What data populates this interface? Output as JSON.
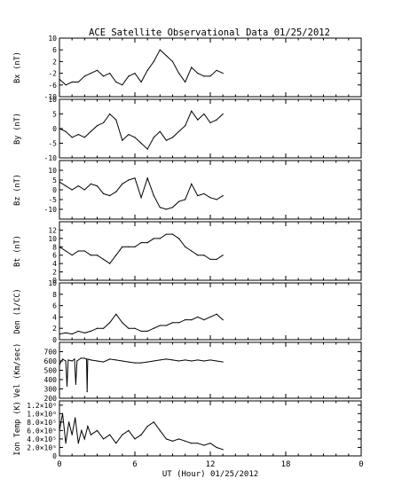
{
  "chart_data": {
    "type": "line",
    "title": "ACE Satellite Observational Data  01/25/2012",
    "xlabel": "UT (Hour)  01/25/2012",
    "xlim": [
      0,
      24
    ],
    "xticks": [
      "0",
      "6",
      "12",
      "18",
      "0"
    ],
    "grid": false,
    "panels": [
      {
        "ylabel": "Bx (nT)",
        "ylim": [
          -10,
          10
        ],
        "yticks": [
          "10",
          "6",
          "2",
          "-2",
          "-6",
          "-10"
        ],
        "x": [
          0,
          0.5,
          1,
          1.5,
          2,
          2.5,
          3,
          3.5,
          4,
          4.5,
          5,
          5.5,
          6,
          6.5,
          7,
          7.5,
          8,
          8.5,
          9,
          9.5,
          10,
          10.5,
          11,
          11.5,
          12,
          12.5,
          13
        ],
        "values": [
          -4,
          -6,
          -5,
          -5,
          -3,
          -2,
          -1,
          -3,
          -2,
          -5,
          -6,
          -3,
          -2,
          -5,
          -1,
          2,
          6,
          4,
          2,
          -2,
          -5,
          0,
          -2,
          -3,
          -3,
          -1,
          -2
        ]
      },
      {
        "ylabel": "By (nT)",
        "ylim": [
          -10,
          10
        ],
        "yticks": [
          "10",
          "5",
          "0",
          "-5",
          "-10"
        ],
        "x": [
          0,
          0.5,
          1,
          1.5,
          2,
          2.5,
          3,
          3.5,
          4,
          4.5,
          5,
          5.5,
          6,
          6.5,
          7,
          7.5,
          8,
          8.5,
          9,
          9.5,
          10,
          10.5,
          11,
          11.5,
          12,
          12.5,
          13
        ],
        "values": [
          0,
          -1,
          -3,
          -2,
          -3,
          -1,
          1,
          2,
          5,
          3,
          -4,
          -2,
          -3,
          -5,
          -7,
          -3,
          -1,
          -4,
          -3,
          -1,
          1,
          6,
          3,
          5,
          2,
          3,
          5
        ]
      },
      {
        "ylabel": "Bz (nT)",
        "ylim": [
          -15,
          15
        ],
        "yticks": [
          "10",
          "5",
          "0",
          "-5",
          "-10"
        ],
        "x": [
          0,
          0.5,
          1,
          1.5,
          2,
          2.5,
          3,
          3.5,
          4,
          4.5,
          5,
          5.5,
          6,
          6.5,
          7,
          7.5,
          8,
          8.5,
          9,
          9.5,
          10,
          10.5,
          11,
          11.5,
          12,
          12.5,
          13
        ],
        "values": [
          4,
          2,
          0,
          2,
          0,
          3,
          2,
          -2,
          -3,
          -1,
          3,
          5,
          6,
          -4,
          6,
          -3,
          -9,
          -10,
          -9,
          -6,
          -5,
          3,
          -3,
          -2,
          -4,
          -5,
          -3
        ]
      },
      {
        "ylabel": "Bt (nT)",
        "ylim": [
          0,
          14
        ],
        "yticks": [
          "12",
          "10",
          "8",
          "6",
          "4",
          "2",
          "0"
        ],
        "x": [
          0,
          0.5,
          1,
          1.5,
          2,
          2.5,
          3,
          3.5,
          4,
          4.5,
          5,
          5.5,
          6,
          6.5,
          7,
          7.5,
          8,
          8.5,
          9,
          9.5,
          10,
          10.5,
          11,
          11.5,
          12,
          12.5,
          13
        ],
        "values": [
          8,
          7,
          6,
          7,
          7,
          6,
          6,
          5,
          4,
          6,
          8,
          8,
          8,
          9,
          9,
          10,
          10,
          11,
          11,
          10,
          8,
          7,
          6,
          6,
          5,
          5,
          6
        ]
      },
      {
        "ylabel": "Den (1/CC)",
        "ylim": [
          0,
          10
        ],
        "yticks": [
          "10",
          "8",
          "6",
          "4",
          "2",
          "0"
        ],
        "x": [
          0,
          0.5,
          1,
          1.5,
          2,
          2.5,
          3,
          3.5,
          4,
          4.5,
          5,
          5.5,
          6,
          6.5,
          7,
          7.5,
          8,
          8.5,
          9,
          9.5,
          10,
          10.5,
          11,
          11.5,
          12,
          12.5,
          13
        ],
        "values": [
          1,
          1.2,
          1,
          1.5,
          1.2,
          1.5,
          2,
          2,
          3,
          4.5,
          3,
          2,
          2,
          1.5,
          1.5,
          2,
          2.5,
          2.5,
          3,
          3,
          3.5,
          3.5,
          4,
          3.5,
          4,
          4.5,
          3.5
        ]
      },
      {
        "ylabel": "Vel (Km/sec)",
        "ylim": [
          200,
          800
        ],
        "yticks": [
          "700",
          "600",
          "500",
          "400",
          "300",
          "200"
        ],
        "x": [
          0,
          0.25,
          0.5,
          0.6,
          0.7,
          1,
          1.2,
          1.3,
          1.4,
          1.7,
          2,
          2.15,
          2.2,
          2.25,
          2.5,
          3,
          3.5,
          4,
          4.5,
          5,
          5.5,
          6,
          6.5,
          7,
          7.5,
          8,
          8.5,
          9,
          9.5,
          10,
          10.5,
          11,
          11.5,
          12,
          12.5,
          13
        ],
        "values": [
          560,
          620,
          600,
          330,
          610,
          600,
          620,
          350,
          600,
          630,
          630,
          620,
          270,
          620,
          610,
          600,
          590,
          620,
          610,
          600,
          590,
          580,
          580,
          590,
          600,
          610,
          620,
          610,
          600,
          610,
          600,
          610,
          600,
          610,
          600,
          590
        ]
      },
      {
        "ylabel": "Ion Temp (K)",
        "ylim": [
          0,
          1300000
        ],
        "yticks": [
          "1.2×10⁶",
          "1.0×10⁶",
          "8.0×10⁵",
          "6.0×10⁵",
          "4.0×10⁵",
          "2.0×10⁵",
          "0"
        ],
        "x": [
          0,
          0.25,
          0.5,
          0.75,
          1,
          1.25,
          1.5,
          1.75,
          2,
          2.25,
          2.5,
          3,
          3.5,
          4,
          4.5,
          5,
          5.5,
          6,
          6.5,
          7,
          7.5,
          8,
          8.5,
          9,
          9.5,
          10,
          10.5,
          11,
          11.5,
          12,
          12.5,
          13
        ],
        "values": [
          600000,
          1000000,
          300000,
          800000,
          500000,
          900000,
          300000,
          600000,
          400000,
          700000,
          500000,
          600000,
          400000,
          500000,
          300000,
          500000,
          600000,
          400000,
          500000,
          700000,
          800000,
          600000,
          400000,
          350000,
          400000,
          350000,
          300000,
          300000,
          250000,
          300000,
          200000,
          150000
        ]
      }
    ]
  }
}
